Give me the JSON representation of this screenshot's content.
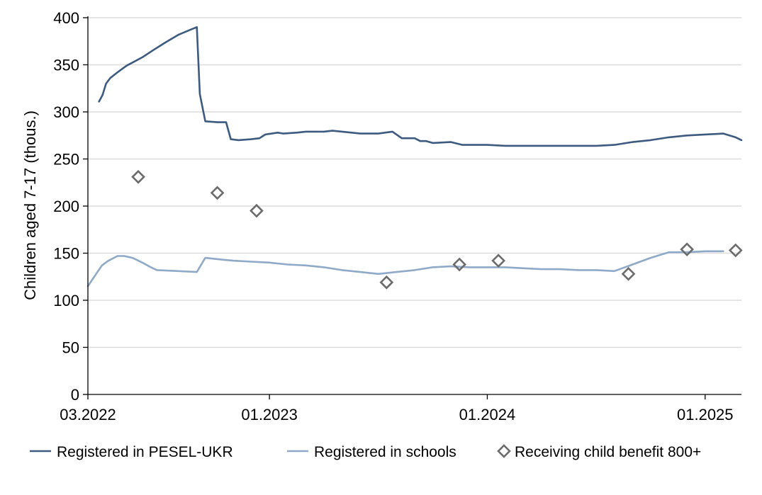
{
  "chart_data": {
    "type": "line",
    "title": "",
    "xlabel": "",
    "ylabel": "Children aged 7-17 (thous.)",
    "ylim": [
      0,
      400
    ],
    "yticks": [
      0,
      50,
      100,
      150,
      200,
      250,
      300,
      350,
      400
    ],
    "xlim": [
      "2022-03",
      "2025-03"
    ],
    "xticks": [
      {
        "date": "2022-03",
        "label": "03.2022"
      },
      {
        "date": "2023-01",
        "label": "01.2023"
      },
      {
        "date": "2024-01",
        "label": "01.2024"
      },
      {
        "date": "2025-01",
        "label": "01.2025"
      }
    ],
    "grid": true,
    "legend_position": "bottom",
    "series": [
      {
        "name": "Registered in PESEL-UKR",
        "kind": "line",
        "color": "#3d5a80",
        "points": [
          [
            "2022-03-20",
            311
          ],
          [
            "2022-03-26",
            318
          ],
          [
            "2022-04-01",
            330
          ],
          [
            "2022-04-08",
            336
          ],
          [
            "2022-04-20",
            342
          ],
          [
            "2022-05-05",
            349
          ],
          [
            "2022-06-01",
            358
          ],
          [
            "2022-06-20",
            366
          ],
          [
            "2022-07-10",
            374
          ],
          [
            "2022-08-01",
            382
          ],
          [
            "2022-08-20",
            387
          ],
          [
            "2022-09-01",
            390
          ],
          [
            "2022-09-06",
            319
          ],
          [
            "2022-09-15",
            290
          ],
          [
            "2022-10-05",
            289
          ],
          [
            "2022-10-20",
            289
          ],
          [
            "2022-10-28",
            271
          ],
          [
            "2022-11-10",
            270
          ],
          [
            "2022-12-01",
            271
          ],
          [
            "2022-12-15",
            272
          ],
          [
            "2022-12-25",
            276
          ],
          [
            "2023-01-15",
            278
          ],
          [
            "2023-01-25",
            277
          ],
          [
            "2023-02-15",
            278
          ],
          [
            "2023-03-01",
            279
          ],
          [
            "2023-04-01",
            279
          ],
          [
            "2023-04-15",
            280
          ],
          [
            "2023-05-01",
            279
          ],
          [
            "2023-06-01",
            277
          ],
          [
            "2023-07-01",
            277
          ],
          [
            "2023-07-25",
            279
          ],
          [
            "2023-08-10",
            272
          ],
          [
            "2023-09-01",
            272
          ],
          [
            "2023-09-10",
            269
          ],
          [
            "2023-09-20",
            269
          ],
          [
            "2023-10-01",
            267
          ],
          [
            "2023-11-01",
            268
          ],
          [
            "2023-11-20",
            265
          ],
          [
            "2023-12-01",
            265
          ],
          [
            "2024-01-01",
            265
          ],
          [
            "2024-02-01",
            264
          ],
          [
            "2024-04-01",
            264
          ],
          [
            "2024-07-01",
            264
          ],
          [
            "2024-08-01",
            265
          ],
          [
            "2024-09-01",
            268
          ],
          [
            "2024-10-01",
            270
          ],
          [
            "2024-11-01",
            273
          ],
          [
            "2024-12-01",
            275
          ],
          [
            "2025-01-01",
            276
          ],
          [
            "2025-02-01",
            277
          ],
          [
            "2025-02-20",
            273
          ],
          [
            "2025-03-01",
            270
          ]
        ]
      },
      {
        "name": "Registered in schools",
        "kind": "line",
        "color": "#8fa9c8",
        "points": [
          [
            "2022-03-01",
            115
          ],
          [
            "2022-03-15",
            128
          ],
          [
            "2022-03-25",
            137
          ],
          [
            "2022-04-05",
            142
          ],
          [
            "2022-04-20",
            147
          ],
          [
            "2022-05-01",
            147
          ],
          [
            "2022-05-15",
            145
          ],
          [
            "2022-06-01",
            140
          ],
          [
            "2022-06-15",
            135
          ],
          [
            "2022-06-25",
            132
          ],
          [
            "2022-08-01",
            131
          ],
          [
            "2022-09-01",
            130
          ],
          [
            "2022-09-15",
            145
          ],
          [
            "2022-10-15",
            143
          ],
          [
            "2022-11-01",
            142
          ],
          [
            "2022-12-01",
            141
          ],
          [
            "2023-01-01",
            140
          ],
          [
            "2023-02-01",
            138
          ],
          [
            "2023-03-01",
            137
          ],
          [
            "2023-04-01",
            135
          ],
          [
            "2023-05-01",
            132
          ],
          [
            "2023-06-01",
            130
          ],
          [
            "2023-07-01",
            128
          ],
          [
            "2023-08-01",
            130
          ],
          [
            "2023-09-01",
            132
          ],
          [
            "2023-10-01",
            135
          ],
          [
            "2023-11-01",
            136
          ],
          [
            "2023-12-01",
            135
          ],
          [
            "2024-01-01",
            135
          ],
          [
            "2024-02-01",
            135
          ],
          [
            "2024-03-01",
            134
          ],
          [
            "2024-04-01",
            133
          ],
          [
            "2024-05-01",
            133
          ],
          [
            "2024-06-01",
            132
          ],
          [
            "2024-07-01",
            132
          ],
          [
            "2024-08-01",
            131
          ],
          [
            "2024-09-01",
            138
          ],
          [
            "2024-10-01",
            145
          ],
          [
            "2024-11-01",
            151
          ],
          [
            "2024-12-01",
            151
          ],
          [
            "2025-01-01",
            152
          ],
          [
            "2025-02-01",
            152
          ]
        ]
      },
      {
        "name": "Receiving child benefit 800+",
        "kind": "marker",
        "marker": "diamond",
        "color": "#6b6b6b",
        "points": [
          [
            "2022-05-25",
            231
          ],
          [
            "2022-10-05",
            214
          ],
          [
            "2022-12-10",
            195
          ],
          [
            "2023-07-15",
            119
          ],
          [
            "2023-11-15",
            138
          ],
          [
            "2024-01-20",
            142
          ],
          [
            "2024-08-25",
            128
          ],
          [
            "2024-12-01",
            154
          ],
          [
            "2025-02-20",
            153
          ]
        ]
      }
    ]
  }
}
